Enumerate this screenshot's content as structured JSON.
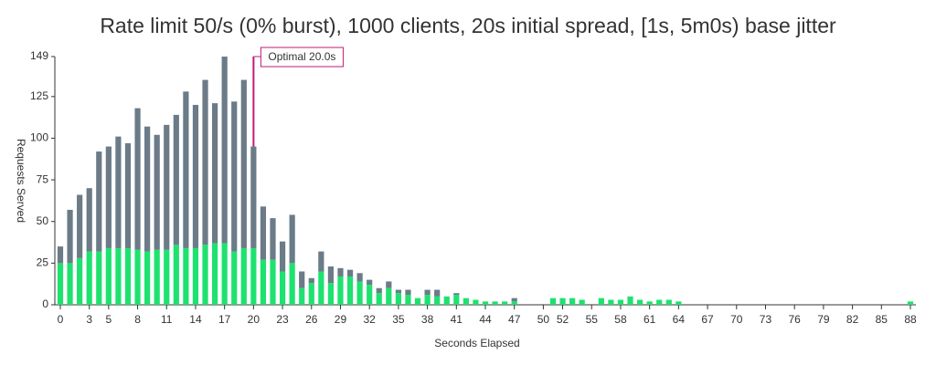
{
  "chart_data": {
    "type": "stacked_bar",
    "title": "Rate limit 50/s (0% burst), 1000 clients, 20s initial spread, [1s, 5m0s) base jitter",
    "x_label": "Seconds Elapsed",
    "y_label": "Requests Served",
    "x": [
      0,
      1,
      2,
      3,
      4,
      5,
      6,
      7,
      8,
      9,
      10,
      11,
      12,
      13,
      14,
      15,
      16,
      17,
      18,
      19,
      20,
      21,
      22,
      23,
      24,
      25,
      26,
      27,
      28,
      29,
      30,
      31,
      32,
      33,
      34,
      35,
      36,
      37,
      38,
      39,
      40,
      41,
      42,
      43,
      44,
      45,
      46,
      47,
      51,
      52,
      53,
      54,
      56,
      57,
      58,
      59,
      60,
      61,
      62,
      63,
      64,
      88
    ],
    "series": [
      {
        "color": "#1ee26f",
        "values": [
          25,
          25,
          28,
          32,
          32,
          34,
          34,
          34,
          33,
          32,
          33,
          33,
          36,
          34,
          34,
          36,
          37,
          37,
          32,
          34,
          34,
          27,
          27,
          20,
          25,
          10,
          13,
          20,
          13,
          17,
          17,
          14,
          12,
          7,
          10,
          7,
          6,
          4,
          6,
          5,
          5,
          6,
          4,
          3,
          2,
          2,
          2,
          2,
          4,
          4,
          4,
          3,
          4,
          3,
          3,
          5,
          3,
          2,
          3,
          3,
          2,
          2
        ]
      },
      {
        "color": "#6b7b88",
        "values": [
          10,
          32,
          38,
          38,
          60,
          61,
          67,
          63,
          85,
          75,
          69,
          75,
          78,
          94,
          86,
          99,
          84,
          112,
          90,
          101,
          61,
          32,
          25,
          18,
          29,
          10,
          3,
          12,
          10,
          5,
          4,
          5,
          3,
          3,
          4,
          2,
          3,
          0,
          3,
          4,
          0,
          1,
          0,
          0,
          0,
          0,
          0,
          2,
          0,
          0,
          0,
          0,
          0,
          0,
          0,
          0,
          0,
          0,
          0,
          0,
          0,
          0
        ]
      }
    ],
    "xlim": [
      0,
      88
    ],
    "xticks": [
      0,
      3,
      5,
      8,
      11,
      14,
      17,
      20,
      23,
      26,
      29,
      32,
      35,
      38,
      41,
      44,
      47,
      50,
      52,
      55,
      58,
      61,
      64,
      67,
      70,
      73,
      76,
      79,
      82,
      85,
      88
    ],
    "ylim": [
      0,
      149
    ],
    "yticks": [
      0,
      25,
      50,
      75,
      100,
      125,
      149
    ],
    "annotation": {
      "text": "Optimal 20.0s",
      "x": 20,
      "color": "#c2187a"
    }
  }
}
